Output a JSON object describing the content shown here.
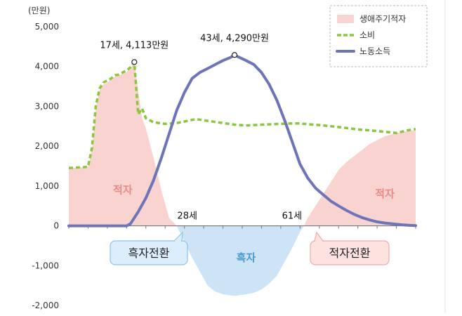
{
  "chart_data": {
    "type": "area",
    "ylabel": "(만원)",
    "ylim": [
      -2000,
      5000
    ],
    "yticks": [
      "5,000",
      "4,000",
      "3,000",
      "2,000",
      "1,000",
      "0",
      "-1,000",
      "-2,000"
    ],
    "ytick_values": [
      5000,
      4000,
      3000,
      2000,
      1000,
      0,
      -1000,
      -2000
    ],
    "xlim": [
      0,
      90
    ],
    "grid": false,
    "legend_position": "top-right",
    "series": [
      {
        "name": "생애주기적자",
        "kind": "area",
        "colors": {
          "positive": "#f9d3d0",
          "negative": "#cde4f7"
        },
        "x": [
          0,
          5,
          6,
          7,
          8,
          9,
          10,
          11,
          12,
          13,
          14,
          15,
          16,
          17,
          18,
          19,
          20,
          22,
          24,
          26,
          28,
          30,
          32,
          34,
          36,
          38,
          40,
          43,
          46,
          48,
          50,
          52,
          54,
          56,
          58,
          60,
          61,
          62,
          64,
          66,
          68,
          70,
          72,
          74,
          76,
          78,
          80,
          82,
          84,
          86,
          88,
          90
        ],
        "y": [
          1450,
          1480,
          1900,
          2950,
          3400,
          3550,
          3600,
          3680,
          3750,
          3780,
          3820,
          3860,
          3950,
          4113,
          3400,
          2700,
          2450,
          1700,
          900,
          200,
          0,
          -400,
          -800,
          -1150,
          -1500,
          -1650,
          -1720,
          -1760,
          -1720,
          -1680,
          -1600,
          -1450,
          -1250,
          -900,
          -550,
          -150,
          0,
          200,
          500,
          800,
          1100,
          1400,
          1600,
          1750,
          1900,
          2050,
          2150,
          2250,
          2300,
          2350,
          2380,
          2400
        ]
      },
      {
        "name": "소비",
        "kind": "dashed-line",
        "color": "#8cc63e",
        "x": [
          0,
          5,
          6,
          7,
          8,
          9,
          10,
          11,
          12,
          13,
          14,
          15,
          16,
          17,
          18,
          19,
          20,
          22,
          25,
          28,
          30,
          33,
          35,
          40,
          43,
          46,
          50,
          55,
          58,
          60,
          61,
          65,
          70,
          75,
          80,
          85,
          88,
          90
        ],
        "y": [
          1450,
          1480,
          1950,
          3000,
          3450,
          3600,
          3650,
          3700,
          3780,
          3800,
          3850,
          3900,
          3980,
          4113,
          2800,
          2950,
          2700,
          2600,
          2560,
          2580,
          2620,
          2680,
          2650,
          2580,
          2540,
          2520,
          2540,
          2560,
          2570,
          2570,
          2560,
          2530,
          2480,
          2420,
          2380,
          2330,
          2400,
          2430
        ]
      },
      {
        "name": "노동소득",
        "kind": "line",
        "color": "#6e74b8",
        "x": [
          0,
          15,
          16,
          18,
          20,
          22,
          24,
          26,
          28,
          30,
          32,
          34,
          36,
          38,
          40,
          42,
          43,
          44,
          46,
          48,
          50,
          52,
          54,
          56,
          58,
          60,
          62,
          64,
          66,
          68,
          70,
          72,
          74,
          76,
          78,
          80,
          82,
          84,
          86,
          88,
          90
        ],
        "y": [
          0,
          0,
          50,
          350,
          700,
          1150,
          1700,
          2300,
          2900,
          3350,
          3700,
          3850,
          3950,
          4050,
          4150,
          4230,
          4290,
          4240,
          4150,
          4050,
          3850,
          3550,
          3150,
          2650,
          2100,
          1550,
          1200,
          950,
          780,
          620,
          500,
          390,
          290,
          210,
          150,
          100,
          70,
          50,
          30,
          15,
          5
        ]
      }
    ],
    "annotations": [
      {
        "text": "17세, 4,113만원",
        "x": 17,
        "y": 4113,
        "marker": true
      },
      {
        "text": "43세, 4,290만원",
        "x": 43,
        "y": 4290,
        "marker": true
      },
      {
        "text": "28세",
        "x": 28,
        "y": 0
      },
      {
        "text": "61세",
        "x": 61,
        "y": 0
      },
      {
        "text": "적자",
        "x": 14,
        "y": 900,
        "color": "#e78b86"
      },
      {
        "text": "흑자",
        "x": 46,
        "y": -800,
        "color": "#4a9bd4"
      },
      {
        "text": "적자",
        "x": 82,
        "y": 800,
        "color": "#e78b86"
      }
    ],
    "callouts": [
      {
        "text": "흑자전환",
        "style": "blue"
      },
      {
        "text": "적자전환",
        "style": "pink"
      }
    ]
  }
}
